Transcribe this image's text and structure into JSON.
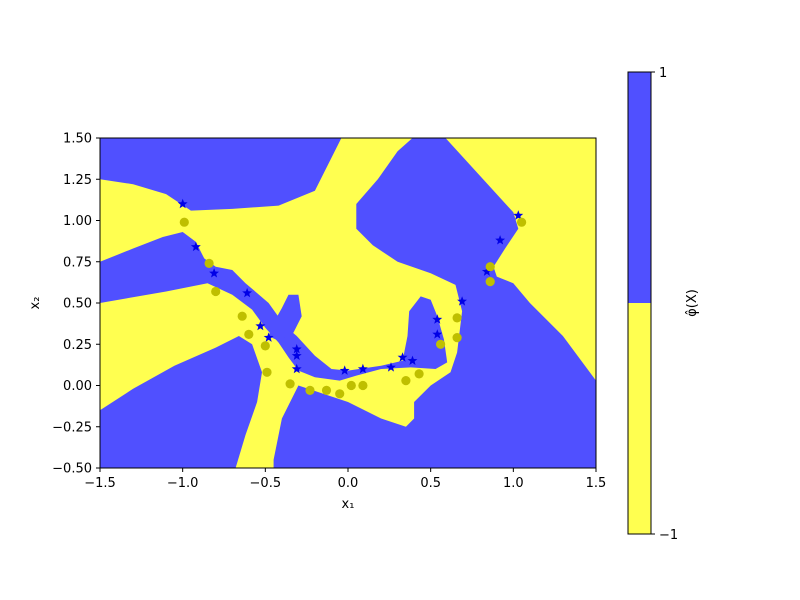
{
  "chart_data": {
    "type": "scatter",
    "title": "",
    "xlabel": "x₁",
    "ylabel": "x₂",
    "xlim": [
      -1.5,
      1.5
    ],
    "ylim": [
      -0.5,
      1.5
    ],
    "xticks": [
      "−1.5",
      "−1.0",
      "−0.5",
      "0.0",
      "0.5",
      "1.0",
      "1.5"
    ],
    "yticks": [
      "−0.50",
      "−0.25",
      "0.00",
      "0.25",
      "0.50",
      "0.75",
      "1.00",
      "1.25",
      "1.50"
    ],
    "grid": false,
    "region_colors": {
      "positive": "#5050ff",
      "negative": "#ffff50"
    },
    "colorbar": {
      "label": "φ̂(X)",
      "min_label": "−1",
      "max_label": "1",
      "split": 0.0
    },
    "series": [
      {
        "marker": "star",
        "color": "#0000e6",
        "points": [
          [
            -1.0,
            1.1
          ],
          [
            -0.92,
            0.84
          ],
          [
            -0.81,
            0.68
          ],
          [
            -0.61,
            0.56
          ],
          [
            -0.53,
            0.36
          ],
          [
            -0.48,
            0.29
          ],
          [
            -0.31,
            0.22
          ],
          [
            -0.31,
            0.18
          ],
          [
            -0.31,
            0.1
          ],
          [
            -0.02,
            0.09
          ],
          [
            0.09,
            0.1
          ],
          [
            0.26,
            0.11
          ],
          [
            0.33,
            0.17
          ],
          [
            0.39,
            0.15
          ],
          [
            0.54,
            0.4
          ],
          [
            0.54,
            0.31
          ],
          [
            0.69,
            0.51
          ],
          [
            0.84,
            0.69
          ],
          [
            0.92,
            0.88
          ],
          [
            1.03,
            1.03
          ]
        ]
      },
      {
        "marker": "circle",
        "color": "#bfbf00",
        "points": [
          [
            -0.99,
            0.99
          ],
          [
            -0.84,
            0.74
          ],
          [
            -0.8,
            0.57
          ],
          [
            -0.64,
            0.42
          ],
          [
            -0.6,
            0.31
          ],
          [
            -0.5,
            0.24
          ],
          [
            -0.49,
            0.08
          ],
          [
            -0.35,
            0.01
          ],
          [
            -0.23,
            -0.03
          ],
          [
            -0.13,
            -0.03
          ],
          [
            -0.05,
            -0.05
          ],
          [
            0.02,
            0.0
          ],
          [
            0.09,
            0.0
          ],
          [
            0.35,
            0.03
          ],
          [
            0.43,
            0.07
          ],
          [
            0.56,
            0.25
          ],
          [
            0.66,
            0.41
          ],
          [
            0.66,
            0.29
          ],
          [
            0.86,
            0.72
          ],
          [
            0.86,
            0.63
          ],
          [
            1.05,
            0.99
          ]
        ]
      }
    ]
  }
}
